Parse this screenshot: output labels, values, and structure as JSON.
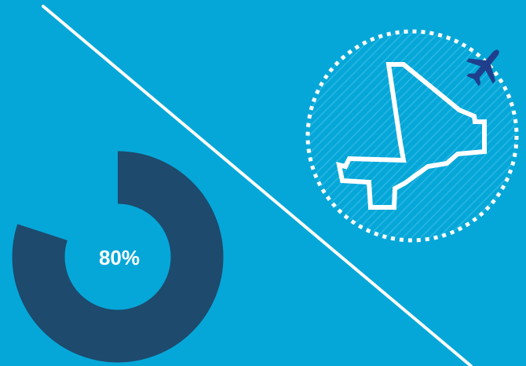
{
  "colors": {
    "background": "#05a7d8",
    "donut_fill": "#1d4a6d",
    "line": "#ffffff",
    "map_outline": "#ffffff",
    "dotted_circle": "#ffffff",
    "plane": "#1f3f8c"
  },
  "progress": {
    "percent": 80,
    "label": "80%"
  },
  "icons": {
    "map": "country-outline-icon",
    "plane": "airplane-icon"
  }
}
